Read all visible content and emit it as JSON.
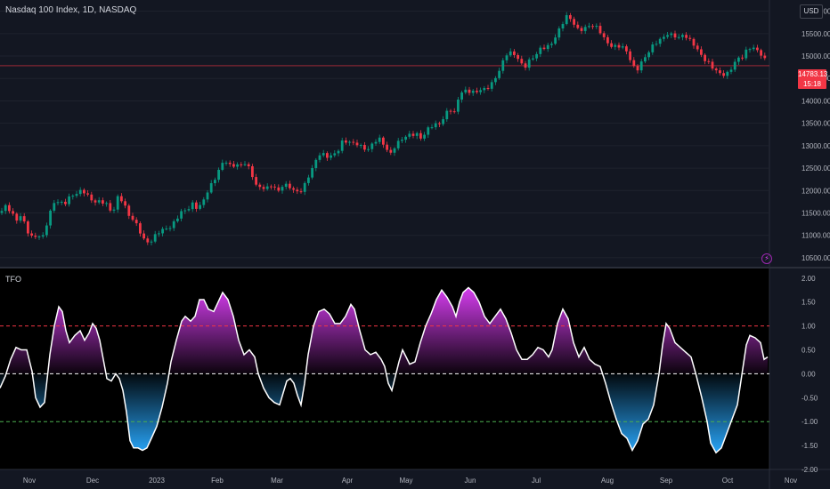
{
  "header": {
    "symbol_title": "Nasdaq 100 Index, 1D, NASDAQ",
    "currency": "USD",
    "last_price": "14783.13",
    "countdown": "15:18"
  },
  "indicator": {
    "name": "TFO"
  },
  "colors": {
    "background": "#131722",
    "indicator_bg": "#000000",
    "up_candle": "#089981",
    "down_candle": "#f23645",
    "positive_fill": "#e040fb",
    "negative_fill": "#29a9ff",
    "upper_level": "#f23645",
    "lower_level": "#4caf50",
    "zero_line": "#ffffff"
  },
  "chart_data": [
    {
      "type": "candlestick",
      "title": "Nasdaq 100 Index, 1D, NASDAQ",
      "ylim": [
        10300,
        16250
      ],
      "yticks": [
        "16000.00",
        "15500.00",
        "15000.00",
        "14500.00",
        "14000.00",
        "13500.00",
        "13000.00",
        "12500.00",
        "12000.00",
        "11500.00",
        "11000.00",
        "10500.00"
      ],
      "x_labels": [
        "Nov",
        "Dec",
        "2023",
        "Feb",
        "Mar",
        "Apr",
        "May",
        "Jun",
        "Jul",
        "Aug",
        "Sep",
        "Oct",
        "Nov"
      ],
      "close_path": [
        [
          0,
          11500
        ],
        [
          6,
          11700
        ],
        [
          12,
          11600
        ],
        [
          18,
          11300
        ],
        [
          24,
          11400
        ],
        [
          30,
          11100
        ],
        [
          36,
          11000
        ],
        [
          42,
          11050
        ],
        [
          48,
          10950
        ],
        [
          54,
          11300
        ],
        [
          60,
          11700
        ],
        [
          66,
          11800
        ],
        [
          72,
          11750
        ],
        [
          78,
          11850
        ],
        [
          84,
          11850
        ],
        [
          90,
          11950
        ],
        [
          96,
          12000
        ],
        [
          102,
          11850
        ],
        [
          108,
          11750
        ],
        [
          114,
          11700
        ],
        [
          120,
          11650
        ],
        [
          126,
          11500
        ],
        [
          132,
          11900
        ],
        [
          138,
          11800
        ],
        [
          144,
          11400
        ],
        [
          150,
          11300
        ],
        [
          156,
          11150
        ],
        [
          162,
          10950
        ],
        [
          168,
          10850
        ],
        [
          174,
          10950
        ],
        [
          180,
          11050
        ],
        [
          186,
          11150
        ],
        [
          192,
          11250
        ],
        [
          198,
          11400
        ],
        [
          204,
          11500
        ],
        [
          210,
          11500
        ],
        [
          216,
          11700
        ],
        [
          222,
          11650
        ],
        [
          228,
          11800
        ],
        [
          234,
          12000
        ],
        [
          240,
          12150
        ],
        [
          246,
          12450
        ],
        [
          252,
          12750
        ],
        [
          258,
          12600
        ],
        [
          264,
          12550
        ],
        [
          270,
          12500
        ],
        [
          276,
          12600
        ],
        [
          282,
          12450
        ],
        [
          288,
          12150
        ],
        [
          294,
          12050
        ],
        [
          300,
          12000
        ],
        [
          306,
          12100
        ],
        [
          312,
          12000
        ],
        [
          318,
          12200
        ],
        [
          324,
          12100
        ],
        [
          330,
          11950
        ],
        [
          336,
          11900
        ],
        [
          342,
          12150
        ],
        [
          348,
          12450
        ],
        [
          354,
          12650
        ],
        [
          360,
          12800
        ],
        [
          366,
          12700
        ],
        [
          372,
          12800
        ],
        [
          378,
          12900
        ],
        [
          384,
          13100
        ],
        [
          390,
          13050
        ],
        [
          396,
          13000
        ],
        [
          402,
          13050
        ],
        [
          408,
          13000
        ],
        [
          414,
          12950
        ],
        [
          420,
          13050
        ],
        [
          426,
          13100
        ],
        [
          432,
          13000
        ],
        [
          438,
          12850
        ],
        [
          444,
          13050
        ],
        [
          450,
          13100
        ],
        [
          456,
          13150
        ],
        [
          462,
          13250
        ],
        [
          468,
          13300
        ],
        [
          474,
          13200
        ],
        [
          480,
          13350
        ],
        [
          486,
          13400
        ],
        [
          492,
          13450
        ],
        [
          498,
          13650
        ],
        [
          504,
          13900
        ],
        [
          510,
          13700
        ],
        [
          516,
          14100
        ],
        [
          522,
          14200
        ],
        [
          528,
          14250
        ],
        [
          534,
          14250
        ],
        [
          540,
          14250
        ],
        [
          546,
          14200
        ],
        [
          552,
          14350
        ],
        [
          558,
          14600
        ],
        [
          564,
          14900
        ],
        [
          570,
          15100
        ],
        [
          576,
          15000
        ],
        [
          582,
          14900
        ],
        [
          588,
          14750
        ],
        [
          594,
          14950
        ],
        [
          600,
          15000
        ],
        [
          606,
          15100
        ],
        [
          612,
          15150
        ],
        [
          618,
          15250
        ],
        [
          624,
          15500
        ],
        [
          630,
          15700
        ],
        [
          636,
          15850
        ],
        [
          642,
          15750
        ],
        [
          648,
          15600
        ],
        [
          654,
          15650
        ],
        [
          660,
          15700
        ],
        [
          666,
          15650
        ],
        [
          672,
          15550
        ],
        [
          678,
          15400
        ],
        [
          684,
          15300
        ],
        [
          690,
          15250
        ],
        [
          696,
          15200
        ],
        [
          702,
          15100
        ],
        [
          708,
          14900
        ],
        [
          714,
          14700
        ],
        [
          720,
          14900
        ],
        [
          726,
          15000
        ],
        [
          732,
          15150
        ],
        [
          738,
          15300
        ],
        [
          744,
          15450
        ],
        [
          750,
          15550
        ],
        [
          756,
          15450
        ],
        [
          762,
          15350
        ],
        [
          768,
          15450
        ],
        [
          774,
          15400
        ],
        [
          780,
          15300
        ],
        [
          786,
          15050
        ],
        [
          792,
          14850
        ],
        [
          798,
          14750
        ],
        [
          804,
          14700
        ],
        [
          810,
          14650
        ],
        [
          816,
          14600
        ],
        [
          822,
          14700
        ],
        [
          828,
          14900
        ],
        [
          834,
          15000
        ],
        [
          840,
          15250
        ],
        [
          846,
          15200
        ],
        [
          852,
          15050
        ],
        [
          858,
          14900
        ],
        [
          862,
          14783
        ]
      ]
    },
    {
      "type": "area",
      "title": "TFO",
      "ylim": [
        -2.0,
        2.2
      ],
      "yticks": [
        "2.00",
        "1.50",
        "1.00",
        "0.50",
        "0.00",
        "-0.50",
        "-1.00",
        "-1.50",
        "-2.00"
      ],
      "levels": [
        1.0,
        0.0,
        -1.0
      ],
      "series": [
        {
          "values": [
            [
              0,
              -0.3
            ],
            [
              6,
              -0.05
            ],
            [
              12,
              0.3
            ],
            [
              18,
              0.55
            ],
            [
              24,
              0.5
            ],
            [
              30,
              0.5
            ],
            [
              36,
              0.05
            ],
            [
              40,
              -0.5
            ],
            [
              45,
              -0.7
            ],
            [
              50,
              -0.6
            ],
            [
              56,
              0.4
            ],
            [
              61,
              1.0
            ],
            [
              66,
              1.4
            ],
            [
              70,
              1.3
            ],
            [
              74,
              0.9
            ],
            [
              78,
              0.65
            ],
            [
              84,
              0.8
            ],
            [
              90,
              0.9
            ],
            [
              95,
              0.7
            ],
            [
              100,
              0.85
            ],
            [
              104,
              1.05
            ],
            [
              108,
              0.95
            ],
            [
              112,
              0.7
            ],
            [
              116,
              0.3
            ],
            [
              120,
              -0.1
            ],
            [
              125,
              -0.15
            ],
            [
              130,
              0.0
            ],
            [
              134,
              -0.1
            ],
            [
              138,
              -0.35
            ],
            [
              142,
              -0.8
            ],
            [
              146,
              -1.4
            ],
            [
              150,
              -1.55
            ],
            [
              155,
              -1.55
            ],
            [
              160,
              -1.6
            ],
            [
              165,
              -1.55
            ],
            [
              170,
              -1.35
            ],
            [
              176,
              -1.1
            ],
            [
              182,
              -0.7
            ],
            [
              188,
              -0.2
            ],
            [
              192,
              0.25
            ],
            [
              198,
              0.7
            ],
            [
              204,
              1.1
            ],
            [
              208,
              1.2
            ],
            [
              214,
              1.1
            ],
            [
              219,
              1.2
            ],
            [
              224,
              1.55
            ],
            [
              229,
              1.55
            ],
            [
              234,
              1.35
            ],
            [
              240,
              1.3
            ],
            [
              245,
              1.5
            ],
            [
              250,
              1.7
            ],
            [
              256,
              1.55
            ],
            [
              262,
              1.2
            ],
            [
              268,
              0.7
            ],
            [
              274,
              0.4
            ],
            [
              280,
              0.5
            ],
            [
              286,
              0.35
            ],
            [
              290,
              0.0
            ],
            [
              296,
              -0.3
            ],
            [
              302,
              -0.5
            ],
            [
              308,
              -0.6
            ],
            [
              314,
              -0.65
            ],
            [
              318,
              -0.4
            ],
            [
              322,
              -0.15
            ],
            [
              326,
              -0.1
            ],
            [
              330,
              -0.2
            ],
            [
              334,
              -0.45
            ],
            [
              338,
              -0.65
            ],
            [
              342,
              -0.2
            ],
            [
              346,
              0.4
            ],
            [
              352,
              1.0
            ],
            [
              358,
              1.3
            ],
            [
              364,
              1.35
            ],
            [
              370,
              1.25
            ],
            [
              376,
              1.05
            ],
            [
              382,
              1.05
            ],
            [
              388,
              1.2
            ],
            [
              394,
              1.45
            ],
            [
              398,
              1.35
            ],
            [
              404,
              0.9
            ],
            [
              410,
              0.5
            ],
            [
              416,
              0.4
            ],
            [
              422,
              0.45
            ],
            [
              428,
              0.3
            ],
            [
              432,
              0.15
            ],
            [
              436,
              -0.2
            ],
            [
              440,
              -0.35
            ],
            [
              444,
              -0.05
            ],
            [
              448,
              0.25
            ],
            [
              452,
              0.5
            ],
            [
              456,
              0.35
            ],
            [
              460,
              0.2
            ],
            [
              466,
              0.25
            ],
            [
              472,
              0.65
            ],
            [
              478,
              1.0
            ],
            [
              484,
              1.25
            ],
            [
              490,
              1.55
            ],
            [
              496,
              1.75
            ],
            [
              502,
              1.6
            ],
            [
              508,
              1.4
            ],
            [
              512,
              1.2
            ],
            [
              516,
              1.5
            ],
            [
              520,
              1.7
            ],
            [
              526,
              1.8
            ],
            [
              532,
              1.7
            ],
            [
              538,
              1.5
            ],
            [
              544,
              1.2
            ],
            [
              550,
              1.05
            ],
            [
              556,
              1.2
            ],
            [
              562,
              1.35
            ],
            [
              568,
              1.15
            ],
            [
              574,
              0.85
            ],
            [
              580,
              0.5
            ],
            [
              586,
              0.3
            ],
            [
              592,
              0.3
            ],
            [
              598,
              0.4
            ],
            [
              604,
              0.55
            ],
            [
              610,
              0.5
            ],
            [
              616,
              0.35
            ],
            [
              620,
              0.5
            ],
            [
              626,
              1.05
            ],
            [
              632,
              1.35
            ],
            [
              638,
              1.15
            ],
            [
              644,
              0.65
            ],
            [
              650,
              0.35
            ],
            [
              656,
              0.55
            ],
            [
              662,
              0.3
            ],
            [
              668,
              0.2
            ],
            [
              674,
              0.15
            ],
            [
              680,
              -0.2
            ],
            [
              686,
              -0.6
            ],
            [
              692,
              -0.95
            ],
            [
              698,
              -1.25
            ],
            [
              704,
              -1.35
            ],
            [
              710,
              -1.6
            ],
            [
              716,
              -1.4
            ],
            [
              722,
              -1.05
            ],
            [
              728,
              -0.95
            ],
            [
              734,
              -0.65
            ],
            [
              740,
              0.0
            ],
            [
              744,
              0.6
            ],
            [
              748,
              1.05
            ],
            [
              752,
              0.95
            ],
            [
              758,
              0.65
            ],
            [
              764,
              0.55
            ],
            [
              770,
              0.45
            ],
            [
              776,
              0.35
            ],
            [
              782,
              -0.05
            ],
            [
              788,
              -0.5
            ],
            [
              794,
              -1.0
            ],
            [
              798,
              -1.45
            ],
            [
              804,
              -1.65
            ],
            [
              810,
              -1.55
            ],
            [
              816,
              -1.25
            ],
            [
              822,
              -0.95
            ],
            [
              828,
              -0.65
            ],
            [
              834,
              0.1
            ],
            [
              838,
              0.6
            ],
            [
              842,
              0.8
            ],
            [
              848,
              0.75
            ],
            [
              854,
              0.65
            ],
            [
              858,
              0.3
            ],
            [
              862,
              0.35
            ]
          ]
        }
      ]
    }
  ]
}
